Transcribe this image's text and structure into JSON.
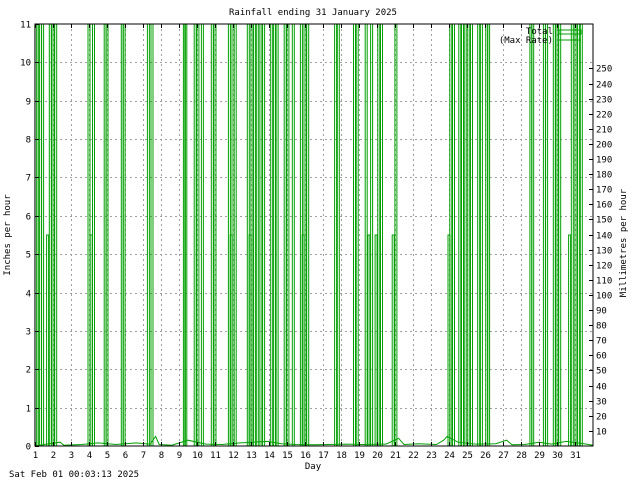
{
  "chart_data": {
    "type": "bar",
    "title": "Rainfall ending 31 January 2025",
    "xlabel": "Day",
    "ylabel": "Inches per hour",
    "y2label": "Millimetres per hour",
    "timestamp": "Sat Feb 01 00:03:13 2025",
    "x_range": [
      1,
      32
    ],
    "ylim": [
      0,
      11
    ],
    "y2lim": [
      0,
      279.4
    ],
    "x_ticks": [
      "1",
      "2",
      "3",
      "4",
      "5",
      "6",
      "7",
      "8",
      "9",
      "10",
      "11",
      "12",
      "13",
      "14",
      "15",
      "16",
      "17",
      "18",
      "19",
      "20",
      "21",
      "22",
      "23",
      "24",
      "25",
      "26",
      "27",
      "28",
      "29",
      "30",
      "31"
    ],
    "y_ticks": [
      "0",
      "1",
      "2",
      "3",
      "4",
      "5",
      "6",
      "7",
      "8",
      "9",
      "10",
      "11"
    ],
    "y2_ticks": [
      "10",
      "20",
      "30",
      "40",
      "50",
      "60",
      "70",
      "80",
      "90",
      "100",
      "110",
      "120",
      "130",
      "140",
      "150",
      "160",
      "170",
      "180",
      "190",
      "200",
      "210",
      "220",
      "230",
      "240",
      "250"
    ],
    "grid": true,
    "legend_position": "top-right",
    "line_color": "#00a000",
    "series": [
      {
        "name": "Total",
        "bars": [
          {
            "x": 1.05,
            "y": 11
          },
          {
            "x": 1.15,
            "y": 11
          },
          {
            "x": 1.3,
            "y": 11
          },
          {
            "x": 1.42,
            "y": 11
          },
          {
            "x": 1.7,
            "y": 5.5
          },
          {
            "x": 1.85,
            "y": 11
          },
          {
            "x": 2.0,
            "y": 11
          },
          {
            "x": 2.15,
            "y": 11
          },
          {
            "x": 4.0,
            "y": 11
          },
          {
            "x": 4.12,
            "y": 5.5
          },
          {
            "x": 4.25,
            "y": 11
          },
          {
            "x": 4.9,
            "y": 11
          },
          {
            "x": 5.0,
            "y": 11
          },
          {
            "x": 5.85,
            "y": 11
          },
          {
            "x": 5.95,
            "y": 11
          },
          {
            "x": 7.3,
            "y": 11
          },
          {
            "x": 7.5,
            "y": 11
          },
          {
            "x": 9.3,
            "y": 11
          },
          {
            "x": 9.38,
            "y": 11
          },
          {
            "x": 9.9,
            "y": 11
          },
          {
            "x": 10.05,
            "y": 11
          },
          {
            "x": 10.3,
            "y": 11
          },
          {
            "x": 10.85,
            "y": 11
          },
          {
            "x": 11.0,
            "y": 11
          },
          {
            "x": 11.8,
            "y": 11
          },
          {
            "x": 11.9,
            "y": 5.5
          },
          {
            "x": 12.0,
            "y": 11
          },
          {
            "x": 12.12,
            "y": 11
          },
          {
            "x": 12.85,
            "y": 11
          },
          {
            "x": 12.95,
            "y": 5.5
          },
          {
            "x": 13.05,
            "y": 11
          },
          {
            "x": 13.2,
            "y": 11
          },
          {
            "x": 13.35,
            "y": 11
          },
          {
            "x": 13.55,
            "y": 11
          },
          {
            "x": 13.7,
            "y": 11
          },
          {
            "x": 14.15,
            "y": 11
          },
          {
            "x": 14.3,
            "y": 11
          },
          {
            "x": 14.45,
            "y": 11
          },
          {
            "x": 14.9,
            "y": 11
          },
          {
            "x": 15.05,
            "y": 11
          },
          {
            "x": 15.35,
            "y": 11
          },
          {
            "x": 15.8,
            "y": 11
          },
          {
            "x": 15.9,
            "y": 5.5
          },
          {
            "x": 16.0,
            "y": 11
          },
          {
            "x": 16.15,
            "y": 11
          },
          {
            "x": 17.7,
            "y": 11
          },
          {
            "x": 17.85,
            "y": 11
          },
          {
            "x": 18.75,
            "y": 11
          },
          {
            "x": 18.9,
            "y": 11
          },
          {
            "x": 19.4,
            "y": 11
          },
          {
            "x": 19.55,
            "y": 5.5
          },
          {
            "x": 19.7,
            "y": 11
          },
          {
            "x": 19.95,
            "y": 5.5
          },
          {
            "x": 20.1,
            "y": 11
          },
          {
            "x": 20.25,
            "y": 11
          },
          {
            "x": 20.9,
            "y": 5.5
          },
          {
            "x": 21.05,
            "y": 11
          },
          {
            "x": 24.0,
            "y": 5.5
          },
          {
            "x": 24.1,
            "y": 11
          },
          {
            "x": 24.25,
            "y": 11
          },
          {
            "x": 24.6,
            "y": 11
          },
          {
            "x": 24.75,
            "y": 11
          },
          {
            "x": 24.9,
            "y": 11
          },
          {
            "x": 25.1,
            "y": 11
          },
          {
            "x": 25.25,
            "y": 11
          },
          {
            "x": 25.65,
            "y": 11
          },
          {
            "x": 25.8,
            "y": 11
          },
          {
            "x": 26.1,
            "y": 11
          },
          {
            "x": 26.2,
            "y": 11
          },
          {
            "x": 28.55,
            "y": 11
          },
          {
            "x": 28.65,
            "y": 11
          },
          {
            "x": 29.3,
            "y": 11
          },
          {
            "x": 29.42,
            "y": 11
          },
          {
            "x": 29.85,
            "y": 11
          },
          {
            "x": 30.0,
            "y": 11
          },
          {
            "x": 30.15,
            "y": 11
          },
          {
            "x": 30.7,
            "y": 5.5
          },
          {
            "x": 30.85,
            "y": 11
          },
          {
            "x": 31.05,
            "y": 11
          },
          {
            "x": 31.2,
            "y": 11
          },
          {
            "x": 31.35,
            "y": 11
          }
        ]
      },
      {
        "name": "(Max Rate)",
        "points": [
          [
            1.0,
            0.0
          ],
          [
            1.5,
            0.04
          ],
          [
            2.4,
            0.1
          ],
          [
            2.6,
            0.02
          ],
          [
            3.6,
            0.04
          ],
          [
            4.5,
            0.08
          ],
          [
            5.5,
            0.04
          ],
          [
            6.6,
            0.08
          ],
          [
            7.4,
            0.05
          ],
          [
            7.7,
            0.25
          ],
          [
            7.9,
            0.04
          ],
          [
            8.6,
            0.02
          ],
          [
            9.5,
            0.15
          ],
          [
            10.5,
            0.05
          ],
          [
            11.4,
            0.04
          ],
          [
            12.4,
            0.08
          ],
          [
            13.9,
            0.12
          ],
          [
            14.7,
            0.06
          ],
          [
            15.5,
            0.04
          ],
          [
            16.5,
            0.03
          ],
          [
            17.3,
            0.04
          ],
          [
            18.3,
            0.05
          ],
          [
            19.2,
            0.04
          ],
          [
            20.5,
            0.05
          ],
          [
            21.2,
            0.2
          ],
          [
            21.5,
            0.04
          ],
          [
            22.3,
            0.06
          ],
          [
            23.3,
            0.04
          ],
          [
            23.7,
            0.15
          ],
          [
            23.9,
            0.25
          ],
          [
            24.5,
            0.1
          ],
          [
            25.5,
            0.05
          ],
          [
            26.6,
            0.06
          ],
          [
            27.2,
            0.15
          ],
          [
            27.5,
            0.03
          ],
          [
            28.2,
            0.04
          ],
          [
            29.0,
            0.1
          ],
          [
            29.7,
            0.05
          ],
          [
            30.5,
            0.12
          ],
          [
            31.5,
            0.06
          ],
          [
            32.0,
            0.02
          ]
        ]
      }
    ]
  }
}
